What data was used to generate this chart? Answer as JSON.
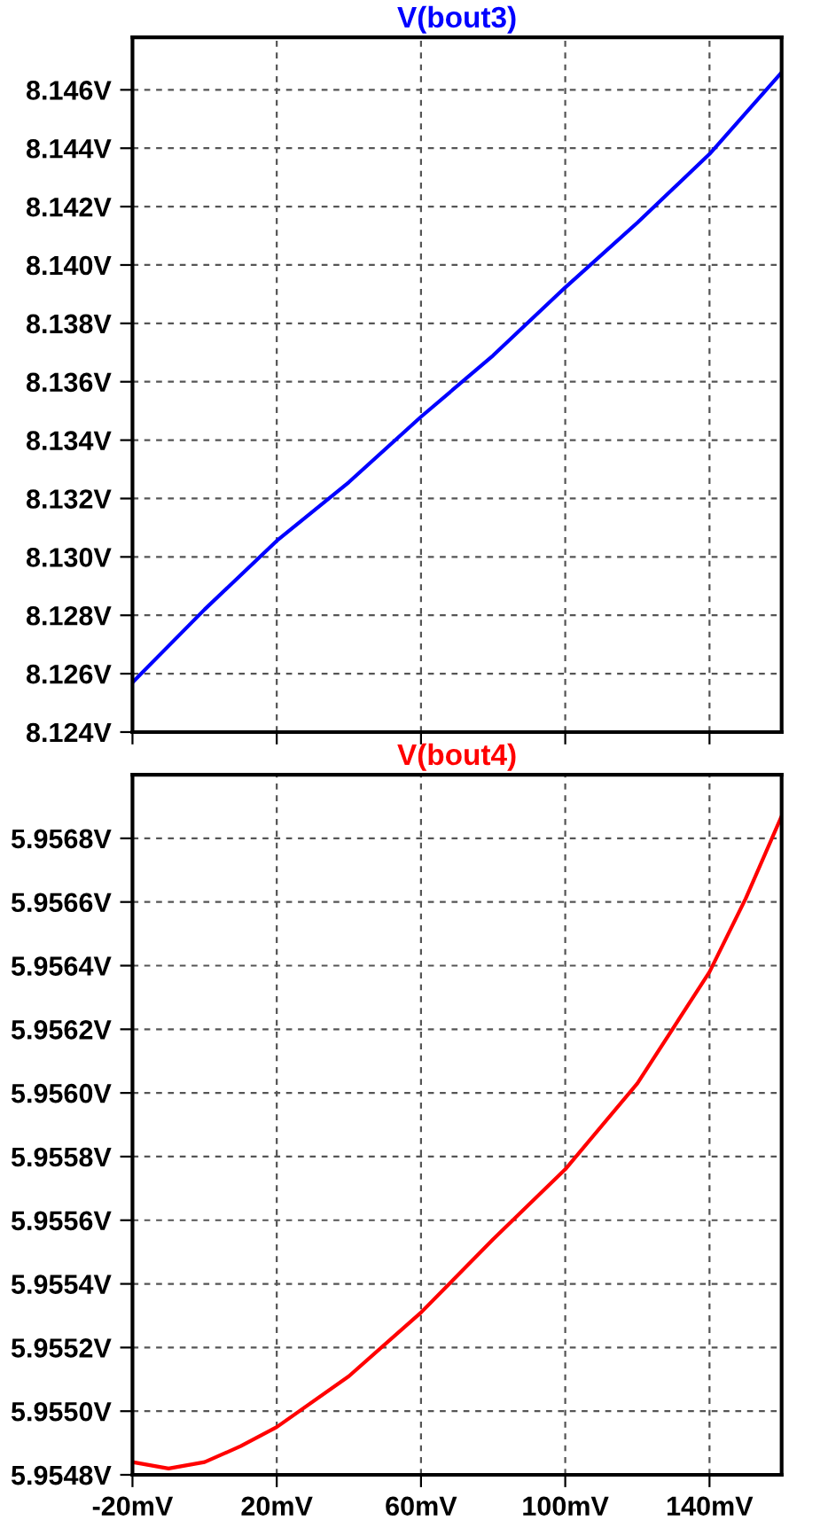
{
  "chart_data": [
    {
      "type": "line",
      "title": "V(bout3)",
      "x": [
        -20,
        0,
        20,
        40,
        60,
        80,
        100,
        120,
        140,
        160
      ],
      "series": [
        {
          "color": "#0000ff",
          "values": [
            8.1257,
            8.1282,
            8.13055,
            8.13256,
            8.1348,
            8.1369,
            8.13923,
            8.14145,
            8.1438,
            8.1466
          ]
        }
      ],
      "xlim": [
        -20,
        160
      ],
      "xticks": [
        {
          "value": -20,
          "label": null
        },
        {
          "value": 20,
          "label": null
        },
        {
          "value": 60,
          "label": null
        },
        {
          "value": 100,
          "label": null
        },
        {
          "value": 140,
          "label": null
        }
      ],
      "ylim": [
        8.124,
        8.1478
      ],
      "yticks": [
        {
          "value": 8.124,
          "label": "8.124V"
        },
        {
          "value": 8.126,
          "label": "8.126V"
        },
        {
          "value": 8.128,
          "label": "8.128V"
        },
        {
          "value": 8.13,
          "label": "8.130V"
        },
        {
          "value": 8.132,
          "label": "8.132V"
        },
        {
          "value": 8.134,
          "label": "8.134V"
        },
        {
          "value": 8.136,
          "label": "8.136V"
        },
        {
          "value": 8.138,
          "label": "8.138V"
        },
        {
          "value": 8.14,
          "label": "8.140V"
        },
        {
          "value": 8.142,
          "label": "8.142V"
        },
        {
          "value": 8.144,
          "label": "8.144V"
        },
        {
          "value": 8.146,
          "label": "8.146V"
        }
      ],
      "grid": true,
      "tick_labels": "y"
    },
    {
      "type": "line",
      "title": "V(bout4)",
      "x": [
        -20,
        -10,
        0,
        10,
        20,
        40,
        60,
        80,
        100,
        120,
        140,
        150,
        160
      ],
      "series": [
        {
          "color": "#ff0000",
          "values": [
            5.95484,
            5.95482,
            5.95484,
            5.95489,
            5.95495,
            5.95511,
            5.95531,
            5.95554,
            5.95576,
            5.95603,
            5.95638,
            5.95661,
            5.95687
          ]
        }
      ],
      "xlim": [
        -20,
        160
      ],
      "xticks": [
        {
          "value": -20,
          "label": "-20mV"
        },
        {
          "value": 20,
          "label": "20mV"
        },
        {
          "value": 60,
          "label": "60mV"
        },
        {
          "value": 100,
          "label": "100mV"
        },
        {
          "value": 140,
          "label": "140mV"
        }
      ],
      "ylim": [
        5.9548,
        5.957
      ],
      "yticks": [
        {
          "value": 5.9548,
          "label": "5.9548V"
        },
        {
          "value": 5.955,
          "label": "5.9550V"
        },
        {
          "value": 5.9552,
          "label": "5.9552V"
        },
        {
          "value": 5.9554,
          "label": "5.9554V"
        },
        {
          "value": 5.9556,
          "label": "5.9556V"
        },
        {
          "value": 5.9558,
          "label": "5.9558V"
        },
        {
          "value": 5.956,
          "label": "5.9560V"
        },
        {
          "value": 5.9562,
          "label": "5.9562V"
        },
        {
          "value": 5.9564,
          "label": "5.9564V"
        },
        {
          "value": 5.9566,
          "label": "5.9566V"
        },
        {
          "value": 5.9568,
          "label": "5.9568V"
        }
      ],
      "grid": true
    }
  ]
}
